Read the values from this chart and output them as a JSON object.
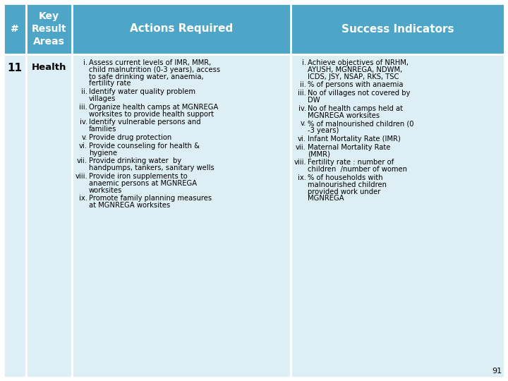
{
  "header_bg": "#4da6c8",
  "header_text_color": "#ffffff",
  "body_bg": "#ddeef5",
  "body_text_color": "#000000",
  "col1_header": "#",
  "col2_header": "Key\nResult\nAreas",
  "col3_header": "Actions Required",
  "col4_header": "Success Indicators",
  "row_number": "11",
  "row_kra": "Health",
  "actions_items": [
    {
      "num": "i.",
      "lines": [
        "Assess current levels of IMR, MMR,",
        "child malnutrition (0-3 years), access",
        "to safe drinking water, anaemia,",
        "fertility rate"
      ]
    },
    {
      "num": "ii.",
      "lines": [
        "Identify water quality problem",
        "villages"
      ]
    },
    {
      "num": "iii.",
      "lines": [
        "Organize health camps at MGNREGA",
        "worksites to provide health support"
      ]
    },
    {
      "num": "iv.",
      "lines": [
        "Identify vulnerable persons and",
        "families"
      ]
    },
    {
      "num": "v.",
      "lines": [
        "Provide drug protection"
      ]
    },
    {
      "num": "vi.",
      "lines": [
        "Provide counseling for health &",
        "hygiene"
      ]
    },
    {
      "num": "vii.",
      "lines": [
        "Provide drinking water  by",
        "handpumps, tankers, sanitary wells"
      ]
    },
    {
      "num": "viii.",
      "lines": [
        "Provide iron supplements to",
        "anaemic persons at MGNREGA",
        "worksites"
      ]
    },
    {
      "num": "ix.",
      "lines": [
        "Promote family planning measures",
        "at MGNREGA worksites"
      ]
    }
  ],
  "indicators_items": [
    {
      "num": "i.",
      "lines": [
        "Achieve objectives of NRHM,",
        "AYUSH, MGNREGA, NDWM,",
        "ICDS, JSY, NSAP, RKS, TSC"
      ]
    },
    {
      "num": "ii.",
      "lines": [
        "% of persons with anaemia"
      ]
    },
    {
      "num": "iii.",
      "lines": [
        "No of villages not covered by",
        "DW"
      ]
    },
    {
      "num": "iv.",
      "lines": [
        "No of health camps held at",
        "MGNREGA worksites"
      ]
    },
    {
      "num": "v.",
      "lines": [
        "% of malnourished children (0",
        "-3 years)"
      ]
    },
    {
      "num": "vi.",
      "lines": [
        "Infant Mortality Rate (IMR)"
      ]
    },
    {
      "num": "vii.",
      "lines": [
        "Maternal Mortality Rate",
        "(MMR)"
      ]
    },
    {
      "num": "viii.",
      "lines": [
        "Fertility rate : number of",
        "children  /number of women"
      ]
    },
    {
      "num": "ix.",
      "lines": [
        "% of households with",
        "malnourished children",
        "provided work under",
        "MGNREGA"
      ]
    }
  ],
  "page_number": "91",
  "figsize": [
    7.2,
    5.4
  ],
  "dpi": 100
}
